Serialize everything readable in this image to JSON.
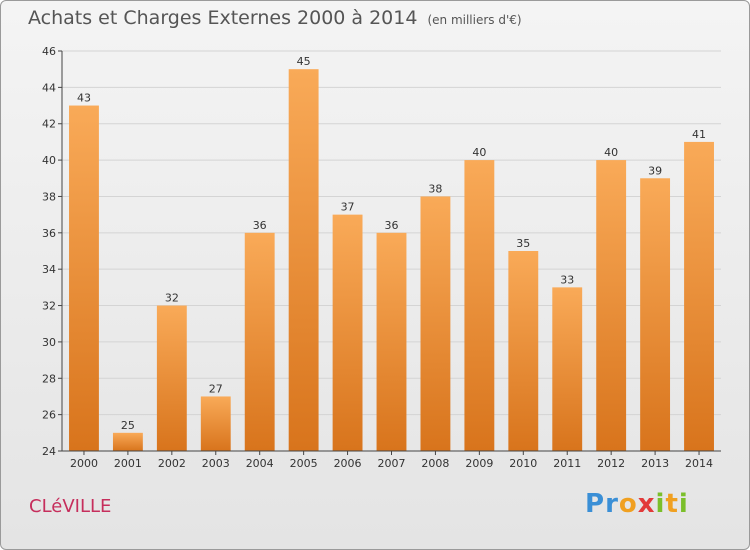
{
  "header": {
    "title": "Achats et Charges Externes 2000 à 2014",
    "subtitle": "(en milliers d'€)"
  },
  "footer": {
    "commune": "CLéVILLE",
    "logo_letters": [
      {
        "ch": "P",
        "color": "#3a8fd6"
      },
      {
        "ch": "r",
        "color": "#3a8fd6"
      },
      {
        "ch": "o",
        "color": "#f0a020"
      },
      {
        "ch": "x",
        "color": "#e23a3a"
      },
      {
        "ch": "i",
        "color": "#7bbf2a"
      },
      {
        "ch": "t",
        "color": "#f0a020"
      },
      {
        "ch": "i",
        "color": "#7bbf2a"
      }
    ]
  },
  "colors": {
    "bar_light": "#f9aa58",
    "bar_dark": "#d8741c",
    "grid": "#d4d4d4",
    "axis": "#444444"
  },
  "chart_data": {
    "type": "bar",
    "categories": [
      "2000",
      "2001",
      "2002",
      "2003",
      "2004",
      "2005",
      "2006",
      "2007",
      "2008",
      "2009",
      "2010",
      "2011",
      "2012",
      "2013",
      "2014"
    ],
    "values": [
      43,
      25,
      32,
      27,
      36,
      45,
      37,
      36,
      38,
      40,
      35,
      33,
      40,
      39,
      41
    ],
    "ylim": [
      24,
      46
    ],
    "yticks": [
      24,
      26,
      28,
      30,
      32,
      34,
      36,
      38,
      40,
      42,
      44,
      46
    ],
    "grid": true,
    "title": "Achats et Charges Externes 2000 à 2014",
    "subtitle": "(en milliers d'€)"
  }
}
